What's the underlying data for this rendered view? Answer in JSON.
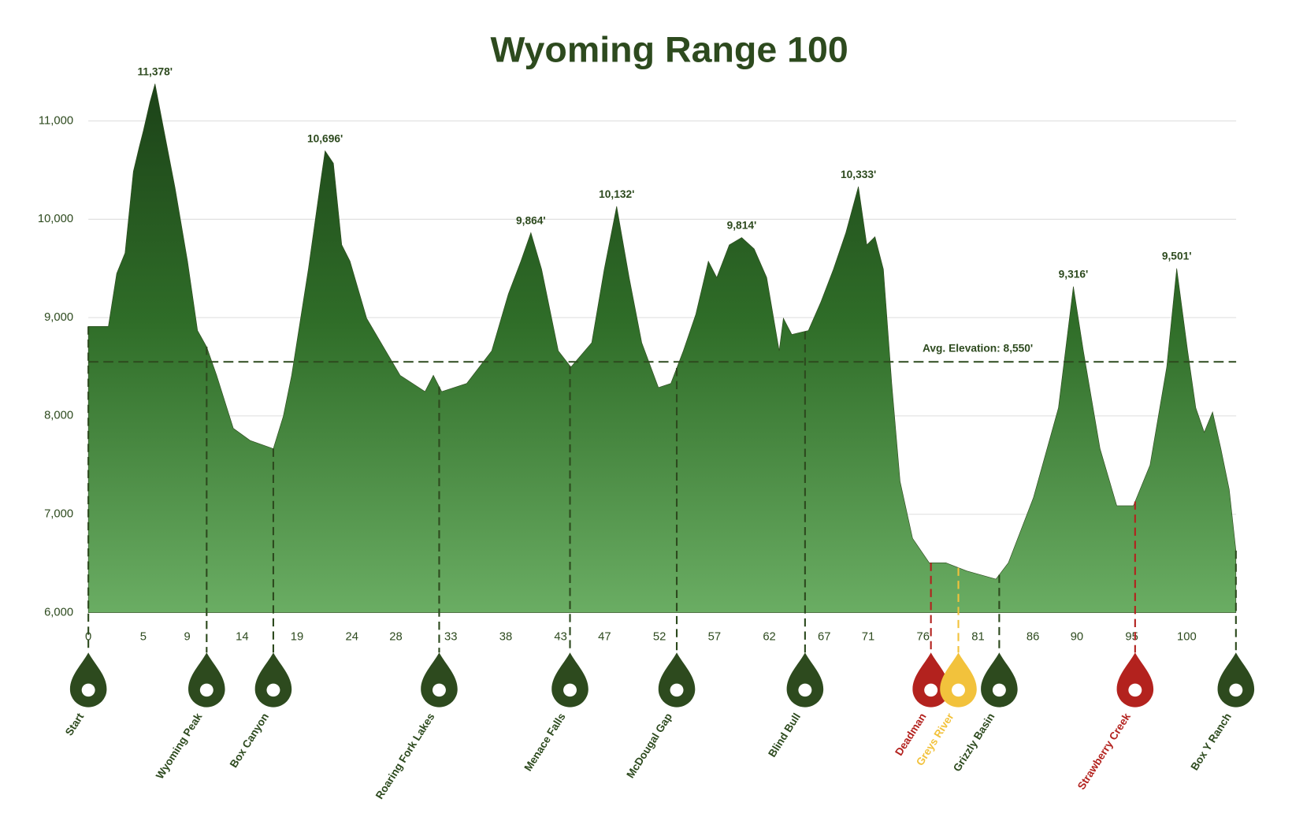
{
  "chart_data": {
    "type": "area",
    "title": "Wyoming Range 100",
    "color": "#2d4a1e",
    "x": [
      0,
      0.68,
      1.82,
      2.58,
      3.34,
      4.1,
      4.63,
      5.01,
      5.61,
      6.07,
      6.75,
      7.89,
      9.03,
      9.94,
      10.77,
      11.68,
      13.2,
      14.72,
      16.84,
      17.75,
      18.51,
      20.03,
      21.17,
      21.55,
      22.31,
      23.07,
      23.82,
      25.34,
      26.86,
      28.38,
      30.65,
      31.41,
      32.17,
      34.45,
      36.72,
      38.24,
      39.38,
      40.29,
      41.27,
      42.79,
      43.93,
      45.83,
      46.97,
      48.1,
      49.24,
      50.38,
      51.9,
      53.03,
      54.17,
      55.31,
      56.45,
      57.21,
      58.35,
      59.48,
      60.62,
      61.76,
      62.9,
      63.28,
      64.04,
      65.55,
      66.69,
      67.83,
      68.97,
      70.11,
      70.87,
      71.62,
      72.38,
      73.14,
      73.9,
      75.04,
      76.56,
      78.07,
      79.97,
      82.63,
      83.76,
      86.04,
      88.32,
      89.68,
      90.59,
      92.11,
      93.63,
      95.14,
      96.66,
      98.18,
      99.09,
      100.08,
      100.83,
      101.59,
      102.35,
      103.11,
      103.87,
      104.48
    ],
    "values": [
      8910,
      8910,
      8910,
      9449,
      9657,
      10486,
      10735,
      10901,
      11191,
      11378,
      10983,
      10320,
      9574,
      8869,
      8703,
      8413,
      7874,
      7750,
      7667,
      7998,
      8413,
      9491,
      10403,
      10696,
      10569,
      9740,
      9574,
      8993,
      8703,
      8413,
      8247,
      8413,
      8247,
      8330,
      8662,
      9242,
      9574,
      9864,
      9491,
      8662,
      8496,
      8745,
      9491,
      10132,
      9408,
      8745,
      8289,
      8330,
      8662,
      9035,
      9574,
      9408,
      9740,
      9814,
      9698,
      9408,
      8662,
      8993,
      8828,
      8869,
      9159,
      9491,
      9864,
      10333,
      9740,
      9823,
      9491,
      8330,
      7335,
      6755,
      6506,
      6506,
      6423,
      6340,
      6506,
      7169,
      8081,
      9316,
      8662,
      7667,
      7086,
      7086,
      7501,
      8496,
      9501,
      8662,
      8081,
      7833,
      8040,
      7667,
      7252,
      6630
    ],
    "value_labels": [
      null,
      null,
      null,
      null,
      null,
      null,
      null,
      null,
      null,
      "11,378'",
      null,
      null,
      null,
      null,
      null,
      null,
      null,
      null,
      null,
      null,
      null,
      null,
      null,
      "10,696'",
      null,
      null,
      null,
      null,
      null,
      null,
      null,
      null,
      null,
      null,
      null,
      null,
      null,
      "9,864'",
      null,
      null,
      null,
      null,
      null,
      "10,132'",
      null,
      null,
      null,
      null,
      null,
      null,
      null,
      null,
      null,
      "9,814'",
      null,
      null,
      null,
      null,
      null,
      null,
      null,
      null,
      null,
      "10,333'",
      null,
      null,
      null,
      null,
      null,
      null,
      null,
      null,
      null,
      null,
      null,
      null,
      null,
      "9,316'",
      null,
      null,
      null,
      null,
      null,
      null,
      "9,501'",
      null,
      null,
      null,
      null,
      null,
      null,
      null
    ],
    "xlim": [
      0,
      104.5
    ],
    "ylim": [
      6000,
      11500
    ],
    "xticks": [
      0,
      5,
      9,
      14,
      19,
      24,
      28,
      33,
      38,
      43,
      47,
      52,
      57,
      62,
      67,
      71,
      76,
      81,
      86,
      90,
      95,
      100
    ],
    "yticks": [
      {
        "value": 6000,
        "label": "6,000"
      },
      {
        "value": 7000,
        "label": "7,000"
      },
      {
        "value": 8000,
        "label": "8,000"
      },
      {
        "value": 9000,
        "label": "9,000"
      },
      {
        "value": 10000,
        "label": "10,000"
      },
      {
        "value": 11000,
        "label": "11,000"
      }
    ],
    "grid": true,
    "average": {
      "value": 8550,
      "label": "Avg. Elevation: 8,550'"
    },
    "markers": [
      {
        "name": "Start",
        "mile": 0,
        "color": "#2d4a1e"
      },
      {
        "name": "Wyoming Peak",
        "mile": 10.77,
        "color": "#2d4a1e"
      },
      {
        "name": "Box Canyon",
        "mile": 16.84,
        "color": "#2d4a1e"
      },
      {
        "name": "Roaring Fork Lakes",
        "mile": 31.94,
        "color": "#2d4a1e"
      },
      {
        "name": "Menace Falls",
        "mile": 43.85,
        "color": "#2d4a1e"
      },
      {
        "name": "McDougal Gap",
        "mile": 53.57,
        "color": "#2d4a1e"
      },
      {
        "name": "Blind Bull",
        "mile": 65.25,
        "color": "#2d4a1e"
      },
      {
        "name": "Deadman",
        "mile": 76.71,
        "color": "#b3221e"
      },
      {
        "name": "Greys River",
        "mile": 79.21,
        "color": "#f2c23c"
      },
      {
        "name": "Grizzly Basin",
        "mile": 82.93,
        "color": "#2d4a1e"
      },
      {
        "name": "Strawberry Creek",
        "mile": 95.3,
        "color": "#b3221e"
      },
      {
        "name": "Box Y Ranch",
        "mile": 104.48,
        "color": "#2d4a1e"
      }
    ]
  }
}
